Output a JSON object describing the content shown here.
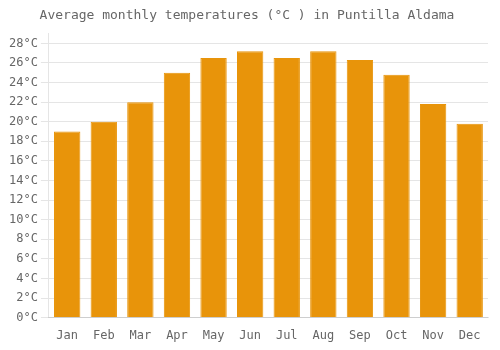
{
  "chart_data": {
    "type": "bar",
    "title": "Average monthly temperatures (°C ) in Puntilla Aldama",
    "categories": [
      "Jan",
      "Feb",
      "Mar",
      "Apr",
      "May",
      "Jun",
      "Jul",
      "Aug",
      "Sep",
      "Oct",
      "Nov",
      "Dec"
    ],
    "values": [
      19.0,
      20.0,
      22.0,
      25.0,
      26.5,
      27.2,
      26.5,
      27.2,
      26.3,
      24.8,
      21.8,
      19.8
    ],
    "color": "#E8940A",
    "ylim": [
      0,
      29
    ],
    "yticks": [
      {
        "value": 0,
        "label": "0°C"
      },
      {
        "value": 2,
        "label": "2°C"
      },
      {
        "value": 4,
        "label": "4°C"
      },
      {
        "value": 6,
        "label": "6°C"
      },
      {
        "value": 8,
        "label": "8°C"
      },
      {
        "value": 10,
        "label": "10°C"
      },
      {
        "value": 12,
        "label": "12°C"
      },
      {
        "value": 14,
        "label": "14°C"
      },
      {
        "value": 16,
        "label": "16°C"
      },
      {
        "value": 18,
        "label": "18°C"
      },
      {
        "value": 20,
        "label": "20°C"
      },
      {
        "value": 22,
        "label": "22°C"
      },
      {
        "value": 24,
        "label": "24°C"
      },
      {
        "value": 26,
        "label": "26°C"
      },
      {
        "value": 28,
        "label": "28°C"
      }
    ],
    "grid": true
  }
}
